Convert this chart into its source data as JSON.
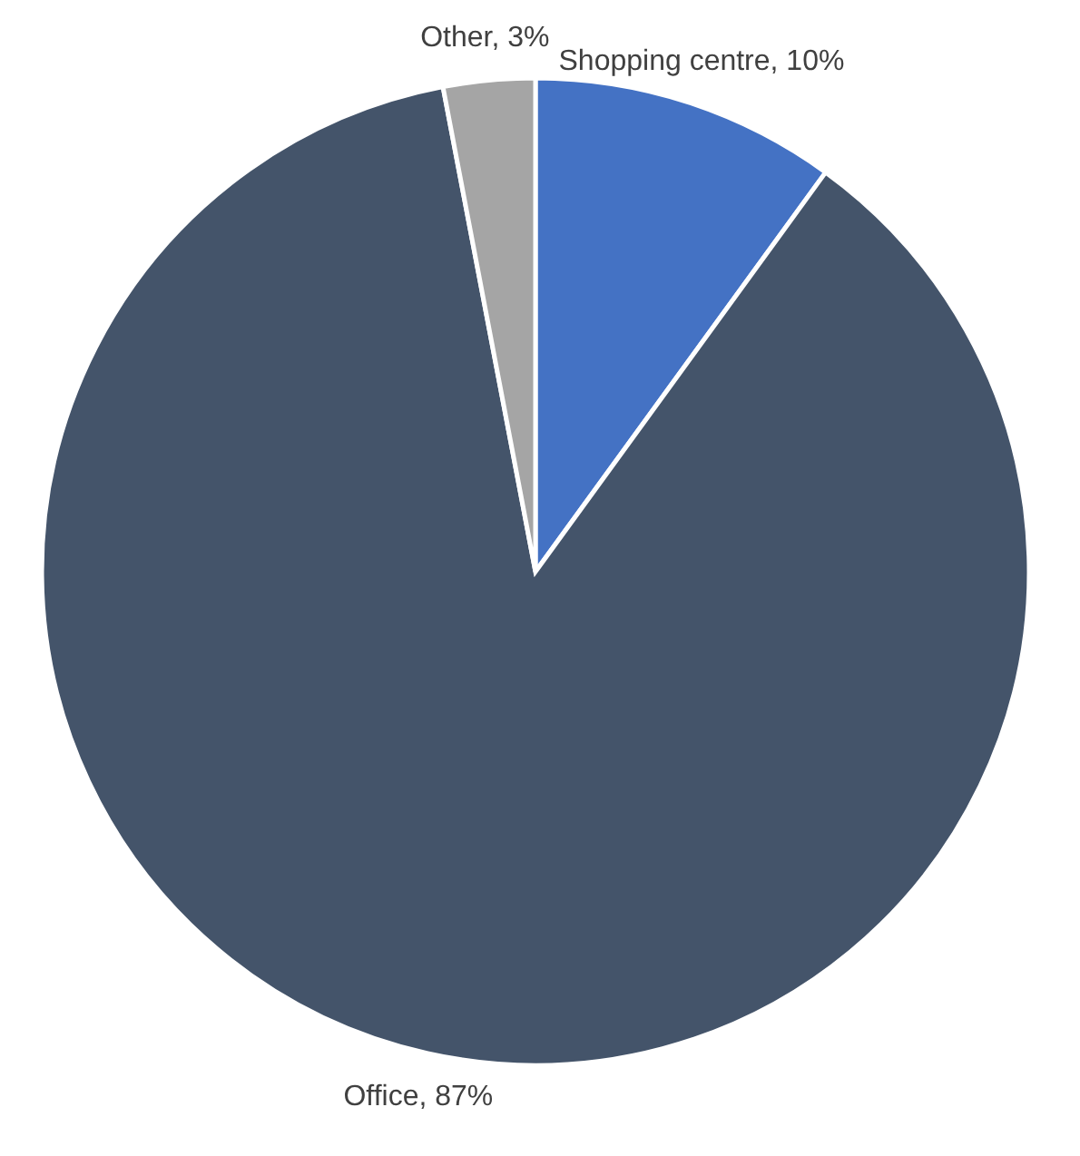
{
  "chart_data": {
    "type": "pie",
    "categories": [
      "Shopping centre",
      "Office",
      "Other"
    ],
    "values": [
      10,
      87,
      3
    ],
    "value_labels": [
      "10%",
      "87%",
      "3%"
    ],
    "colors": [
      "#4472c4",
      "#44546a",
      "#a5a5a5"
    ]
  }
}
